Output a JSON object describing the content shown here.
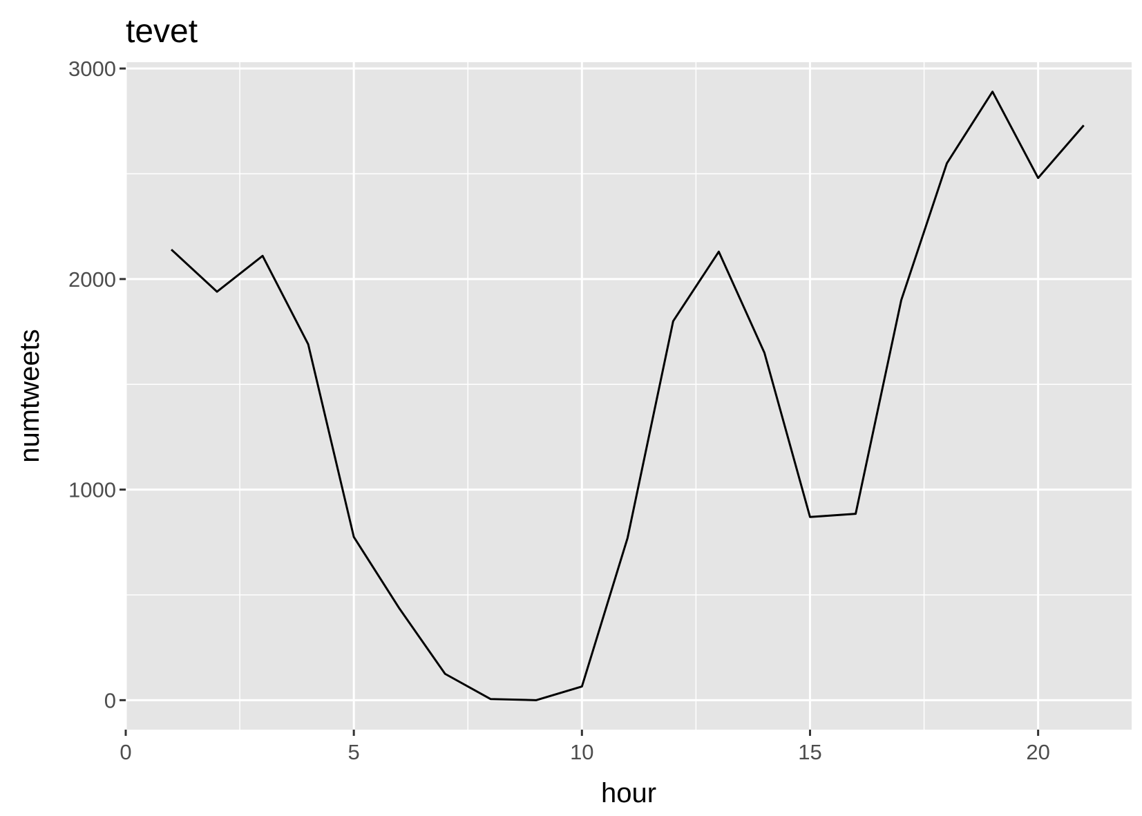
{
  "chart_data": {
    "type": "line",
    "title": "tevet",
    "xlabel": "hour",
    "ylabel": "numtweets",
    "xlim": [
      0,
      22.05
    ],
    "ylim": [
      -140,
      3030
    ],
    "x_ticks": [
      0,
      5,
      10,
      15,
      20
    ],
    "x_tick_labels": [
      "0",
      "5",
      "10",
      "15",
      "20"
    ],
    "x_minor_ticks": [
      2.5,
      7.5,
      12.5,
      17.5
    ],
    "y_ticks": [
      0,
      1000,
      2000,
      3000
    ],
    "y_tick_labels": [
      "0",
      "1000",
      "2000",
      "3000"
    ],
    "y_minor_ticks": [
      500,
      1500,
      2500
    ],
    "grid": true,
    "series": [
      {
        "x": [
          1,
          2,
          3,
          4,
          5,
          6,
          7,
          8,
          9,
          10,
          11,
          12,
          13,
          14,
          15,
          16,
          17,
          18,
          19,
          20,
          21
        ],
        "y": [
          2140,
          1940,
          2110,
          1690,
          775,
          435,
          125,
          5,
          0,
          65,
          770,
          1800,
          2130,
          1650,
          870,
          885,
          1900,
          2550,
          2890,
          2480,
          2730
        ]
      }
    ],
    "colors": {
      "panel_background": "#e5e5e5",
      "grid": "#ffffff",
      "line": "#000000",
      "tick_text": "#4d4d4d",
      "tick_mark": "#333333"
    }
  }
}
